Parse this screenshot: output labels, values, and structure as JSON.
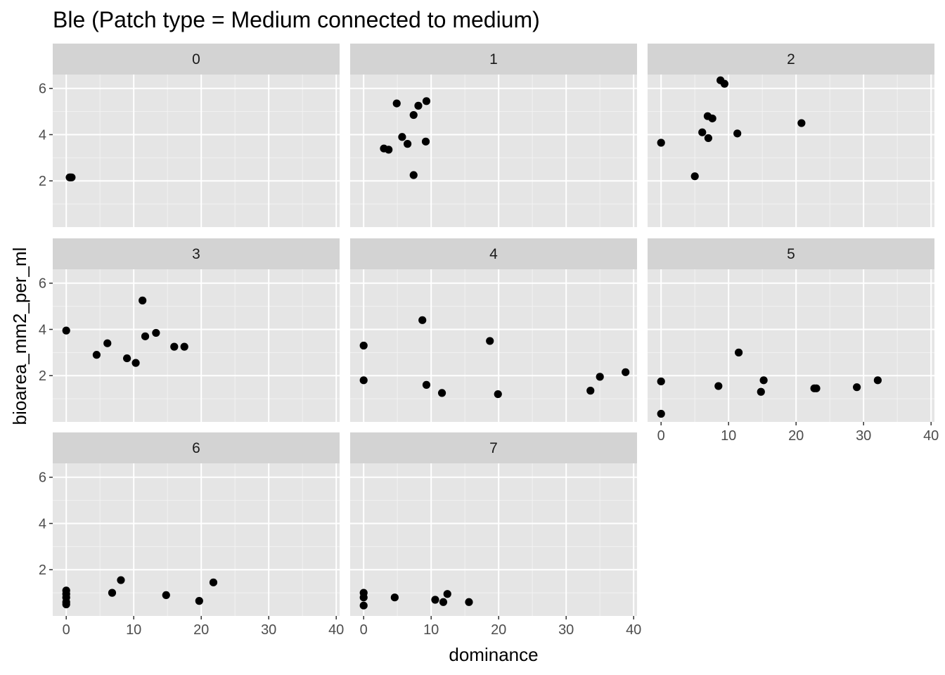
{
  "chart_data": {
    "type": "scatter",
    "title": "Ble (Patch type = Medium connected to medium)",
    "xlabel": "dominance",
    "ylabel": "bioarea_mm2_per_ml",
    "xlim": [
      -2,
      40.5
    ],
    "ylim": [
      0,
      6.6
    ],
    "x_ticks": [
      0,
      10,
      20,
      30,
      40
    ],
    "y_ticks": [
      2,
      4,
      6
    ],
    "grid": true,
    "point_color": "#000000",
    "panel_background": "#e5e5e5",
    "strip_background": "#d3d3d3",
    "facets": [
      {
        "label": "0",
        "points": [
          [
            0.5,
            2.15
          ],
          [
            0.8,
            2.15
          ],
          [
            0.6,
            2.15
          ]
        ]
      },
      {
        "label": "1",
        "points": [
          [
            3.0,
            3.4
          ],
          [
            3.7,
            3.35
          ],
          [
            4.9,
            5.35
          ],
          [
            5.7,
            3.9
          ],
          [
            6.5,
            3.6
          ],
          [
            7.4,
            4.85
          ],
          [
            7.4,
            2.25
          ],
          [
            8.1,
            5.25
          ],
          [
            9.2,
            3.7
          ],
          [
            9.3,
            5.45
          ]
        ]
      },
      {
        "label": "2",
        "points": [
          [
            0.0,
            3.65
          ],
          [
            5.0,
            2.2
          ],
          [
            6.1,
            4.1
          ],
          [
            6.9,
            4.8
          ],
          [
            7.0,
            3.85
          ],
          [
            7.6,
            4.7
          ],
          [
            8.8,
            6.35
          ],
          [
            9.4,
            6.2
          ],
          [
            11.3,
            4.05
          ],
          [
            20.8,
            4.5
          ]
        ]
      },
      {
        "label": "3",
        "points": [
          [
            0.0,
            3.95
          ],
          [
            4.5,
            2.9
          ],
          [
            6.1,
            3.4
          ],
          [
            9.0,
            2.75
          ],
          [
            10.3,
            2.55
          ],
          [
            11.3,
            5.25
          ],
          [
            11.7,
            3.7
          ],
          [
            13.3,
            3.85
          ],
          [
            16.0,
            3.25
          ],
          [
            17.5,
            3.25
          ]
        ]
      },
      {
        "label": "4",
        "points": [
          [
            0.0,
            3.3
          ],
          [
            0.0,
            1.8
          ],
          [
            8.7,
            4.4
          ],
          [
            9.3,
            1.6
          ],
          [
            11.6,
            1.25
          ],
          [
            18.7,
            3.5
          ],
          [
            19.9,
            1.2
          ],
          [
            33.6,
            1.35
          ],
          [
            35.0,
            1.95
          ],
          [
            38.8,
            2.15
          ]
        ]
      },
      {
        "label": "5",
        "points": [
          [
            0.0,
            1.75
          ],
          [
            0.0,
            0.35
          ],
          [
            8.5,
            1.55
          ],
          [
            11.5,
            3.0
          ],
          [
            14.8,
            1.3
          ],
          [
            15.2,
            1.8
          ],
          [
            22.7,
            1.45
          ],
          [
            23.0,
            1.45
          ],
          [
            29.0,
            1.5
          ],
          [
            32.1,
            1.8
          ]
        ]
      },
      {
        "label": "6",
        "points": [
          [
            0.0,
            1.1
          ],
          [
            0.0,
            0.95
          ],
          [
            0.0,
            0.8
          ],
          [
            0.0,
            0.6
          ],
          [
            0.0,
            0.5
          ],
          [
            6.8,
            1.0
          ],
          [
            8.1,
            1.55
          ],
          [
            14.8,
            0.9
          ],
          [
            19.7,
            0.65
          ],
          [
            21.8,
            1.45
          ]
        ]
      },
      {
        "label": "7",
        "points": [
          [
            0.0,
            1.0
          ],
          [
            0.0,
            0.8
          ],
          [
            0.0,
            0.45
          ],
          [
            4.6,
            0.8
          ],
          [
            10.6,
            0.7
          ],
          [
            11.8,
            0.6
          ],
          [
            12.4,
            0.95
          ],
          [
            15.6,
            0.6
          ]
        ]
      }
    ]
  }
}
